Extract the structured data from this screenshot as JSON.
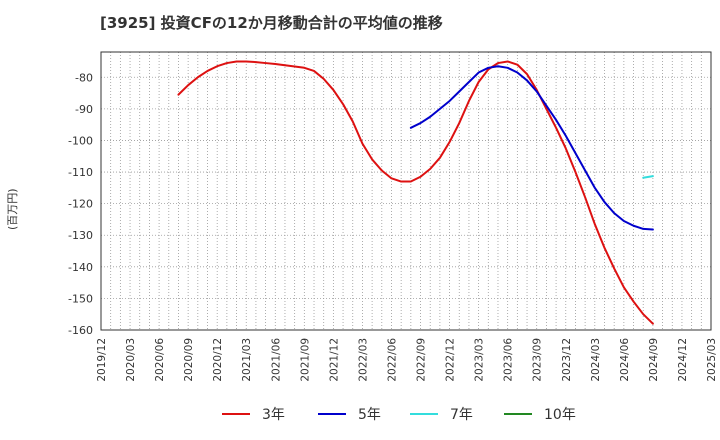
{
  "title": "[3925]  投資CFの12か月移動合計の平均値の推移",
  "chart_data": {
    "type": "line",
    "ylabel": "(百万円)",
    "xlabel": "",
    "ylim": [
      -160,
      -72
    ],
    "yticks": [
      -80,
      -90,
      -100,
      -110,
      -120,
      -130,
      -140,
      -150,
      -160
    ],
    "xticks": [
      "2019/12",
      "2020/03",
      "2020/06",
      "2020/09",
      "2020/12",
      "2021/03",
      "2021/06",
      "2021/09",
      "2021/12",
      "2022/03",
      "2022/06",
      "2022/09",
      "2022/12",
      "2023/03",
      "2023/06",
      "2023/09",
      "2023/12",
      "2024/03",
      "2024/06",
      "2024/09",
      "2024/12",
      "2025/03"
    ],
    "grid": true,
    "legend_position": "bottom",
    "series": [
      {
        "name": "3年",
        "color": "#dd1111",
        "points": [
          [
            "2020/08",
            -85.5
          ],
          [
            "2020/09",
            -82.5
          ],
          [
            "2020/10",
            -80.0
          ],
          [
            "2020/11",
            -78.0
          ],
          [
            "2020/12",
            -76.5
          ],
          [
            "2021/01",
            -75.5
          ],
          [
            "2021/02",
            -75.0
          ],
          [
            "2021/03",
            -75.0
          ],
          [
            "2021/04",
            -75.2
          ],
          [
            "2021/05",
            -75.5
          ],
          [
            "2021/06",
            -75.8
          ],
          [
            "2021/07",
            -76.2
          ],
          [
            "2021/08",
            -76.6
          ],
          [
            "2021/09",
            -77.0
          ],
          [
            "2021/10",
            -78.0
          ],
          [
            "2021/11",
            -80.5
          ],
          [
            "2021/12",
            -84.0
          ],
          [
            "2022/01",
            -88.5
          ],
          [
            "2022/02",
            -94.0
          ],
          [
            "2022/03",
            -101.0
          ],
          [
            "2022/04",
            -106.0
          ],
          [
            "2022/05",
            -109.5
          ],
          [
            "2022/06",
            -112.0
          ],
          [
            "2022/07",
            -113.0
          ],
          [
            "2022/08",
            -113.0
          ],
          [
            "2022/09",
            -111.5
          ],
          [
            "2022/10",
            -109.0
          ],
          [
            "2022/11",
            -105.5
          ],
          [
            "2022/12",
            -100.5
          ],
          [
            "2023/01",
            -94.5
          ],
          [
            "2023/02",
            -87.5
          ],
          [
            "2023/03",
            -81.5
          ],
          [
            "2023/04",
            -77.5
          ],
          [
            "2023/05",
            -75.5
          ],
          [
            "2023/06",
            -75.0
          ],
          [
            "2023/07",
            -76.0
          ],
          [
            "2023/08",
            -79.0
          ],
          [
            "2023/09",
            -84.0
          ],
          [
            "2023/10",
            -90.0
          ],
          [
            "2023/11",
            -96.0
          ],
          [
            "2023/12",
            -102.5
          ],
          [
            "2024/01",
            -110.0
          ],
          [
            "2024/02",
            -118.0
          ],
          [
            "2024/03",
            -126.5
          ],
          [
            "2024/04",
            -134.0
          ],
          [
            "2024/05",
            -140.5
          ],
          [
            "2024/06",
            -146.5
          ],
          [
            "2024/07",
            -151.0
          ],
          [
            "2024/08",
            -155.0
          ],
          [
            "2024/09",
            -158.0
          ]
        ]
      },
      {
        "name": "5年",
        "color": "#0000cc",
        "points": [
          [
            "2022/08",
            -96.0
          ],
          [
            "2022/09",
            -94.5
          ],
          [
            "2022/10",
            -92.5
          ],
          [
            "2022/11",
            -90.0
          ],
          [
            "2022/12",
            -87.5
          ],
          [
            "2023/01",
            -84.5
          ],
          [
            "2023/02",
            -81.5
          ],
          [
            "2023/03",
            -78.5
          ],
          [
            "2023/04",
            -77.0
          ],
          [
            "2023/05",
            -76.5
          ],
          [
            "2023/06",
            -77.0
          ],
          [
            "2023/07",
            -78.5
          ],
          [
            "2023/08",
            -81.0
          ],
          [
            "2023/09",
            -84.5
          ],
          [
            "2023/10",
            -89.0
          ],
          [
            "2023/11",
            -93.5
          ],
          [
            "2023/12",
            -98.5
          ],
          [
            "2024/01",
            -104.0
          ],
          [
            "2024/02",
            -109.5
          ],
          [
            "2024/03",
            -115.0
          ],
          [
            "2024/04",
            -119.5
          ],
          [
            "2024/05",
            -123.0
          ],
          [
            "2024/06",
            -125.5
          ],
          [
            "2024/07",
            -127.0
          ],
          [
            "2024/08",
            -128.0
          ],
          [
            "2024/09",
            -128.2
          ]
        ]
      },
      {
        "name": "7年",
        "color": "#33dddd",
        "points": [
          [
            "2024/08",
            -111.8
          ],
          [
            "2024/09",
            -111.3
          ]
        ]
      },
      {
        "name": "10年",
        "color": "#228822",
        "points": []
      }
    ]
  }
}
